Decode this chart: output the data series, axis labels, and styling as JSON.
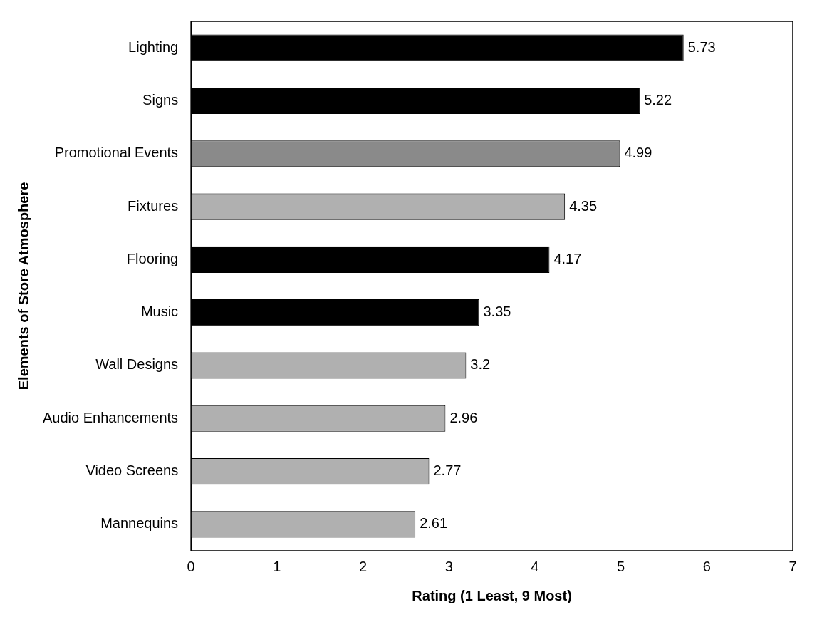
{
  "chart_data": {
    "type": "bar",
    "orientation": "horizontal",
    "xlabel": "Rating (1 Least, 9 Most)",
    "ylabel": "Elements of Store Atmosphere",
    "categories": [
      "Lighting",
      "Signs",
      "Promotional Events",
      "Fixtures",
      "Flooring",
      "Music",
      "Wall Designs",
      "Audio Enhancements",
      "Video Screens",
      "Mannequins"
    ],
    "values": [
      5.73,
      5.22,
      4.99,
      4.35,
      4.17,
      3.35,
      3.2,
      2.96,
      2.77,
      2.61
    ],
    "colors": [
      "#000000",
      "#000000",
      "#8a8a8a",
      "#b0b0b0",
      "#000000",
      "#000000",
      "#b0b0b0",
      "#b0b0b0",
      "#b0b0b0",
      "#b0b0b0"
    ],
    "xlim": [
      0,
      7
    ],
    "xticks": [
      0,
      1,
      2,
      3,
      4,
      5,
      6,
      7
    ],
    "grid": false,
    "legend": false,
    "data_labels": true
  }
}
